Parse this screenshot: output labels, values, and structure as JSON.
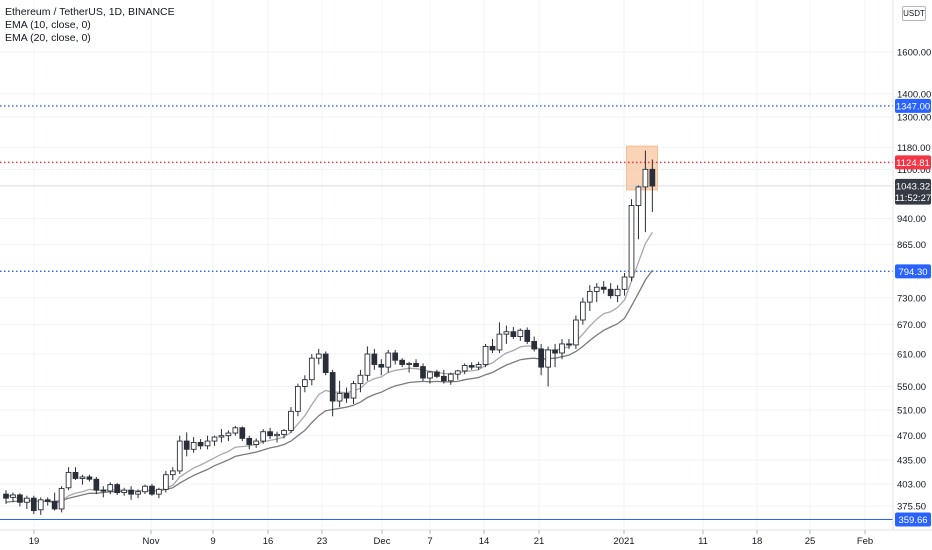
{
  "legend": {
    "symbol_line": "Ethereum / TetherUS, 1D, BINANCE",
    "ema1": "EMA (10, close, 0)",
    "ema2": "EMA (20, close, 0)"
  },
  "price_axis": {
    "currency": "USDT",
    "ticks": [
      "1600.00",
      "1400.00",
      "1300.00",
      "1180.00",
      "1100.00",
      "940.00",
      "865.00",
      "730.00",
      "670.00",
      "610.00",
      "550.00",
      "510.00",
      "470.00",
      "435.00",
      "403.00",
      "375.50"
    ]
  },
  "time_axis": {
    "labels": [
      "19",
      "Nov",
      "9",
      "16",
      "23",
      "Dec",
      "7",
      "14",
      "21",
      "2021",
      "11",
      "18",
      "25",
      "Feb"
    ]
  },
  "price_tags": [
    {
      "name": "blue-upper",
      "value": 1347.0,
      "text": "1347.00",
      "color": "#2962ff",
      "line": "dotted"
    },
    {
      "name": "red",
      "value": 1124.81,
      "text": "1124.81",
      "color": "#f23645",
      "line": "dotted"
    },
    {
      "name": "last-price",
      "value": 1043.32,
      "text": "1043.32",
      "color": "#363a45",
      "line": "none"
    },
    {
      "name": "countdown",
      "value": 1005,
      "text": "11:52:27",
      "color": "#363a45",
      "line": "none"
    },
    {
      "name": "blue-lower",
      "value": 794.3,
      "text": "794.30",
      "color": "#2962ff",
      "line": "dotted"
    },
    {
      "name": "bottom",
      "value": 359.66,
      "text": "359.66",
      "color": "#2962ff",
      "line": "solid"
    }
  ],
  "highlight_box": {
    "from_price": 1030,
    "to_price": 1185,
    "color": "#f7c59f"
  },
  "chart_data": {
    "type": "candlestick",
    "scale": "log",
    "candles": [
      {
        "o": 390,
        "h": 395,
        "l": 378,
        "c": 385
      },
      {
        "o": 386,
        "h": 392,
        "l": 380,
        "c": 389
      },
      {
        "o": 389,
        "h": 391,
        "l": 375,
        "c": 380
      },
      {
        "o": 380,
        "h": 388,
        "l": 372,
        "c": 385
      },
      {
        "o": 385,
        "h": 388,
        "l": 366,
        "c": 370
      },
      {
        "o": 371,
        "h": 386,
        "l": 365,
        "c": 383
      },
      {
        "o": 383,
        "h": 386,
        "l": 376,
        "c": 381
      },
      {
        "o": 381,
        "h": 392,
        "l": 370,
        "c": 372
      },
      {
        "o": 372,
        "h": 400,
        "l": 368,
        "c": 397
      },
      {
        "o": 398,
        "h": 425,
        "l": 395,
        "c": 418
      },
      {
        "o": 418,
        "h": 425,
        "l": 408,
        "c": 410
      },
      {
        "o": 410,
        "h": 415,
        "l": 402,
        "c": 412
      },
      {
        "o": 412,
        "h": 415,
        "l": 406,
        "c": 409
      },
      {
        "o": 409,
        "h": 412,
        "l": 390,
        "c": 395
      },
      {
        "o": 395,
        "h": 400,
        "l": 386,
        "c": 394
      },
      {
        "o": 394,
        "h": 405,
        "l": 390,
        "c": 402
      },
      {
        "o": 402,
        "h": 404,
        "l": 389,
        "c": 392
      },
      {
        "o": 392,
        "h": 398,
        "l": 388,
        "c": 395
      },
      {
        "o": 395,
        "h": 400,
        "l": 383,
        "c": 390
      },
      {
        "o": 390,
        "h": 396,
        "l": 385,
        "c": 393
      },
      {
        "o": 393,
        "h": 402,
        "l": 390,
        "c": 400
      },
      {
        "o": 400,
        "h": 403,
        "l": 388,
        "c": 390
      },
      {
        "o": 390,
        "h": 398,
        "l": 385,
        "c": 396
      },
      {
        "o": 396,
        "h": 420,
        "l": 392,
        "c": 415
      },
      {
        "o": 415,
        "h": 425,
        "l": 408,
        "c": 420
      },
      {
        "o": 420,
        "h": 470,
        "l": 416,
        "c": 462
      },
      {
        "o": 462,
        "h": 475,
        "l": 440,
        "c": 450
      },
      {
        "o": 450,
        "h": 468,
        "l": 445,
        "c": 460
      },
      {
        "o": 460,
        "h": 465,
        "l": 450,
        "c": 455
      },
      {
        "o": 455,
        "h": 470,
        "l": 450,
        "c": 462
      },
      {
        "o": 462,
        "h": 470,
        "l": 455,
        "c": 468
      },
      {
        "o": 468,
        "h": 480,
        "l": 460,
        "c": 470
      },
      {
        "o": 470,
        "h": 478,
        "l": 462,
        "c": 474
      },
      {
        "o": 474,
        "h": 485,
        "l": 470,
        "c": 482
      },
      {
        "o": 482,
        "h": 484,
        "l": 462,
        "c": 466
      },
      {
        "o": 466,
        "h": 470,
        "l": 450,
        "c": 457
      },
      {
        "o": 457,
        "h": 466,
        "l": 452,
        "c": 462
      },
      {
        "o": 462,
        "h": 480,
        "l": 458,
        "c": 476
      },
      {
        "o": 476,
        "h": 482,
        "l": 465,
        "c": 470
      },
      {
        "o": 470,
        "h": 476,
        "l": 460,
        "c": 472
      },
      {
        "o": 472,
        "h": 480,
        "l": 466,
        "c": 478
      },
      {
        "o": 478,
        "h": 515,
        "l": 474,
        "c": 508
      },
      {
        "o": 508,
        "h": 555,
        "l": 500,
        "c": 550
      },
      {
        "o": 550,
        "h": 570,
        "l": 540,
        "c": 562
      },
      {
        "o": 562,
        "h": 610,
        "l": 552,
        "c": 602
      },
      {
        "o": 602,
        "h": 620,
        "l": 590,
        "c": 610
      },
      {
        "o": 610,
        "h": 615,
        "l": 570,
        "c": 575
      },
      {
        "o": 575,
        "h": 580,
        "l": 500,
        "c": 525
      },
      {
        "o": 525,
        "h": 560,
        "l": 515,
        "c": 538
      },
      {
        "o": 538,
        "h": 548,
        "l": 522,
        "c": 530
      },
      {
        "o": 530,
        "h": 560,
        "l": 520,
        "c": 555
      },
      {
        "o": 555,
        "h": 580,
        "l": 540,
        "c": 570
      },
      {
        "o": 570,
        "h": 625,
        "l": 560,
        "c": 610
      },
      {
        "o": 610,
        "h": 620,
        "l": 580,
        "c": 590
      },
      {
        "o": 590,
        "h": 600,
        "l": 570,
        "c": 585
      },
      {
        "o": 585,
        "h": 618,
        "l": 575,
        "c": 612
      },
      {
        "o": 612,
        "h": 618,
        "l": 590,
        "c": 598
      },
      {
        "o": 598,
        "h": 602,
        "l": 585,
        "c": 590
      },
      {
        "o": 590,
        "h": 595,
        "l": 575,
        "c": 592
      },
      {
        "o": 592,
        "h": 600,
        "l": 585,
        "c": 586
      },
      {
        "o": 586,
        "h": 592,
        "l": 560,
        "c": 565
      },
      {
        "o": 565,
        "h": 578,
        "l": 555,
        "c": 576
      },
      {
        "o": 576,
        "h": 580,
        "l": 565,
        "c": 568
      },
      {
        "o": 568,
        "h": 580,
        "l": 555,
        "c": 560
      },
      {
        "o": 560,
        "h": 575,
        "l": 553,
        "c": 572
      },
      {
        "o": 572,
        "h": 580,
        "l": 562,
        "c": 578
      },
      {
        "o": 578,
        "h": 592,
        "l": 572,
        "c": 588
      },
      {
        "o": 588,
        "h": 594,
        "l": 580,
        "c": 585
      },
      {
        "o": 585,
        "h": 595,
        "l": 580,
        "c": 590
      },
      {
        "o": 590,
        "h": 630,
        "l": 585,
        "c": 625
      },
      {
        "o": 625,
        "h": 640,
        "l": 612,
        "c": 618
      },
      {
        "o": 618,
        "h": 675,
        "l": 612,
        "c": 650
      },
      {
        "o": 650,
        "h": 668,
        "l": 630,
        "c": 655
      },
      {
        "o": 655,
        "h": 665,
        "l": 640,
        "c": 645
      },
      {
        "o": 645,
        "h": 662,
        "l": 636,
        "c": 658
      },
      {
        "o": 658,
        "h": 664,
        "l": 630,
        "c": 635
      },
      {
        "o": 635,
        "h": 645,
        "l": 615,
        "c": 620
      },
      {
        "o": 620,
        "h": 630,
        "l": 570,
        "c": 585
      },
      {
        "o": 585,
        "h": 625,
        "l": 550,
        "c": 618
      },
      {
        "o": 618,
        "h": 630,
        "l": 585,
        "c": 612
      },
      {
        "o": 612,
        "h": 640,
        "l": 600,
        "c": 630
      },
      {
        "o": 630,
        "h": 640,
        "l": 620,
        "c": 628
      },
      {
        "o": 628,
        "h": 690,
        "l": 620,
        "c": 680
      },
      {
        "o": 680,
        "h": 730,
        "l": 670,
        "c": 720
      },
      {
        "o": 720,
        "h": 760,
        "l": 700,
        "c": 745
      },
      {
        "o": 745,
        "h": 765,
        "l": 720,
        "c": 755
      },
      {
        "o": 755,
        "h": 770,
        "l": 740,
        "c": 750
      },
      {
        "o": 750,
        "h": 765,
        "l": 728,
        "c": 735
      },
      {
        "o": 735,
        "h": 760,
        "l": 720,
        "c": 750
      },
      {
        "o": 750,
        "h": 790,
        "l": 735,
        "c": 780
      },
      {
        "o": 780,
        "h": 1000,
        "l": 770,
        "c": 980
      },
      {
        "o": 980,
        "h": 1045,
        "l": 880,
        "c": 1040
      },
      {
        "o": 1040,
        "h": 1168,
        "l": 900,
        "c": 1100
      },
      {
        "o": 1100,
        "h": 1135,
        "l": 960,
        "c": 1043
      }
    ],
    "ema10": [
      389,
      387,
      384,
      384,
      381,
      381,
      381,
      379,
      381,
      388,
      391,
      393,
      396,
      395,
      395,
      396,
      395,
      395,
      394,
      394,
      395,
      394,
      394,
      398,
      401,
      412,
      418,
      424,
      428,
      433,
      438,
      443,
      447,
      453,
      454,
      455,
      457,
      461,
      463,
      465,
      468,
      475,
      488,
      501,
      519,
      536,
      543,
      540,
      540,
      539,
      542,
      547,
      558,
      564,
      567,
      575,
      579,
      581,
      583,
      582,
      580,
      577,
      576,
      573,
      573,
      574,
      577,
      578,
      580,
      588,
      593,
      603,
      612,
      617,
      624,
      626,
      625,
      618,
      618,
      617,
      621,
      624,
      635,
      650,
      667,
      682,
      694,
      698,
      708,
      725,
      770,
      818,
      868,
      900
    ],
    "ema20": [
      380,
      381,
      381,
      382,
      381,
      381,
      381,
      381,
      382,
      385,
      387,
      389,
      391,
      391,
      392,
      393,
      393,
      394,
      394,
      394,
      395,
      394,
      394,
      396,
      398,
      404,
      409,
      414,
      418,
      422,
      427,
      431,
      435,
      440,
      442,
      444,
      446,
      449,
      452,
      454,
      457,
      462,
      470,
      478,
      490,
      501,
      509,
      511,
      513,
      515,
      518,
      523,
      531,
      536,
      540,
      546,
      551,
      554,
      557,
      558,
      559,
      558,
      559,
      558,
      558,
      559,
      562,
      564,
      566,
      571,
      575,
      582,
      589,
      594,
      599,
      601,
      602,
      600,
      601,
      602,
      605,
      608,
      615,
      625,
      637,
      648,
      658,
      665,
      672,
      684,
      711,
      741,
      773,
      797
    ]
  }
}
